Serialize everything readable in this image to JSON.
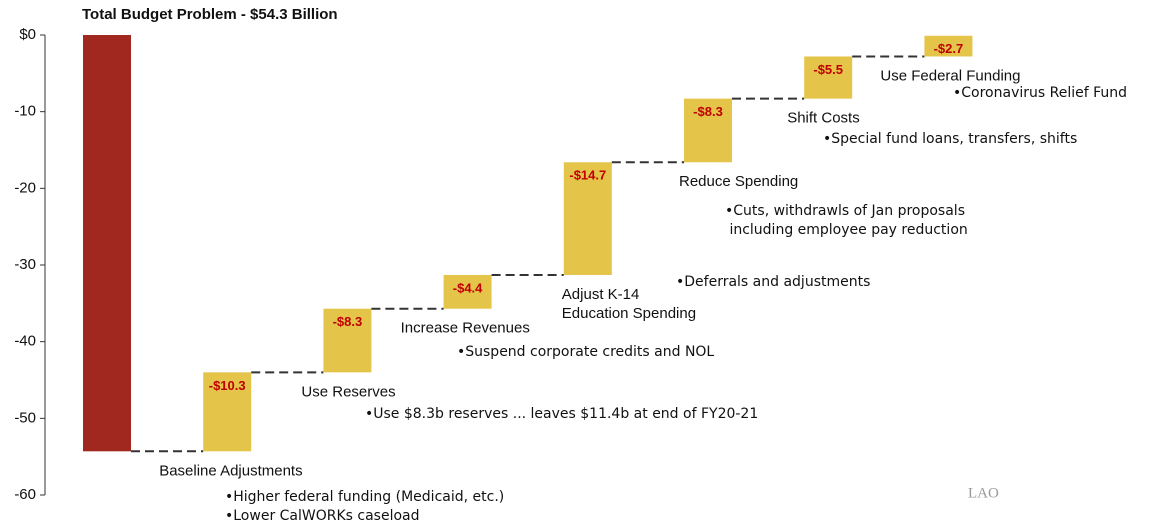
{
  "chart_data": {
    "type": "waterfall",
    "title": "Total Budget Problem - $54.3 Billion",
    "categories": [
      null,
      [
        "Baseline Adjustments"
      ],
      [
        "Use Reserves"
      ],
      [
        "Increase Revenues"
      ],
      [
        "Adjust K-14",
        "Education Spending"
      ],
      [
        "Reduce Spending"
      ],
      [
        "Shift Costs"
      ],
      [
        "Use Federal Funding"
      ]
    ],
    "values": [
      -54.3,
      -10.3,
      -8.3,
      -4.4,
      -14.7,
      -8.3,
      -5.5,
      -2.7
    ],
    "value_labels": [
      null,
      "-$10.3",
      "-$8.3",
      "-$4.4",
      "-$14.7",
      "-$8.3",
      "-$5.5",
      "-$2.7"
    ],
    "notes": [
      [],
      [
        "•Higher federal funding (Medicaid, etc.)",
        "•Lower CalWORKs caseload"
      ],
      [
        "•Use $8.3b reserves ... leaves $11.4b at end of FY20-21"
      ],
      [
        "•Suspend corporate credits and NOL"
      ],
      [
        "•Deferrals and adjustments"
      ],
      [
        "•Cuts, withdrawls of Jan proposals",
        " including employee pay reduction"
      ],
      [
        "•Special fund loans, transfers, shifts"
      ],
      [
        "•Coronavirus Relief Fund"
      ]
    ],
    "colors": [
      "#a0281f",
      "#e5c44a"
    ],
    "ylim": [
      -60,
      0
    ],
    "yticks": [
      {
        "value": 0,
        "label": "$0"
      },
      -10,
      -20,
      -30,
      -40,
      -50,
      -60
    ],
    "source_logo": "LAO"
  }
}
